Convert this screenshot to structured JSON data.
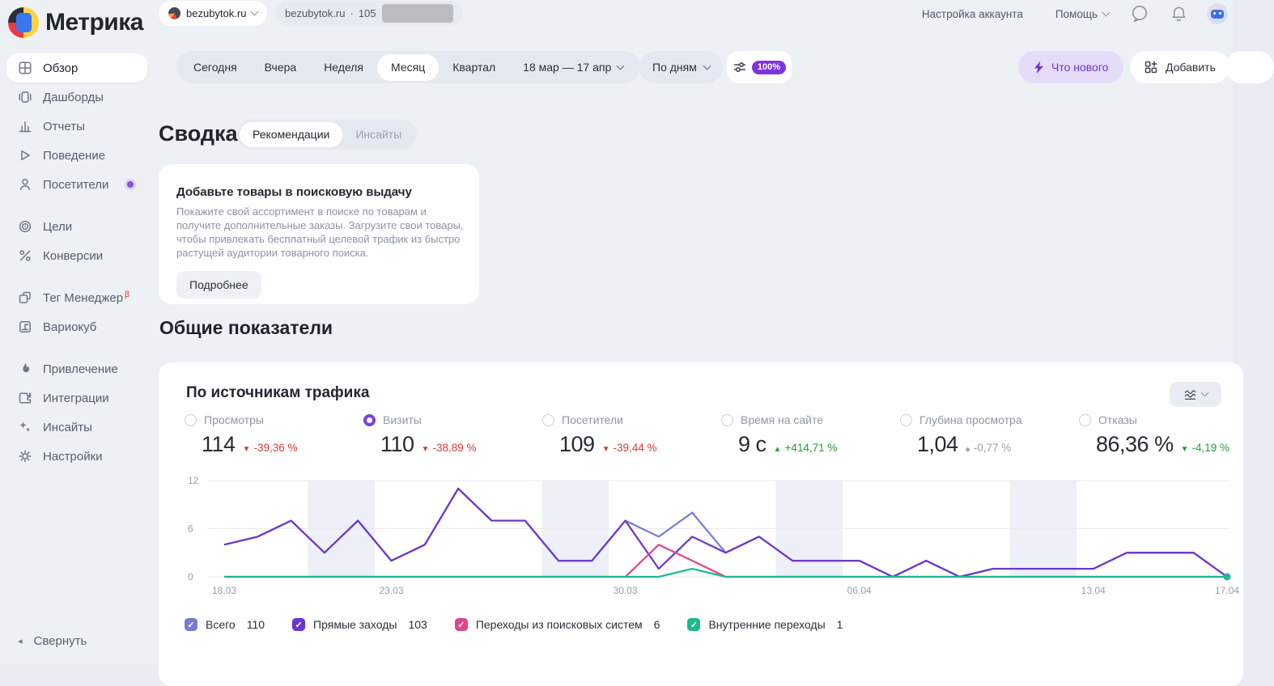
{
  "colors": {
    "accent": "#7a3fd6",
    "bad": "#d6403c",
    "good": "#27a03c",
    "neutral": "#9aa3b0",
    "badge": "#7d35d9"
  },
  "header": {
    "logo": "Метрика",
    "site_selector": "bezubytok.ru",
    "counter_site": "bezubytok.ru",
    "counter_bullet": "·",
    "counter_id_visible": "105",
    "account_settings": "Настройка аккаунта",
    "help": "Помощь"
  },
  "toolbar": {
    "periods": [
      "Сегодня",
      "Вчера",
      "Неделя",
      "Месяц",
      "Квартал"
    ],
    "selected_period": "Месяц",
    "date_range": "18 мар — 17 апр",
    "granularity": "По дням",
    "sampling": "100%",
    "whats_new": "Что нового",
    "add": "Добавить"
  },
  "sidebar": {
    "items": [
      "Обзор",
      "Дашборды",
      "Отчеты",
      "Поведение",
      "Посетители",
      "Цели",
      "Конверсии",
      "Тег Менеджер",
      "Вариокуб",
      "Привлечение",
      "Интеграции",
      "Инсайты",
      "Настройки"
    ],
    "active_item": "Обзор",
    "beta": "β",
    "collapse": "Свернуть"
  },
  "summary": {
    "title": "Сводка",
    "tab_recommendations": "Рекомендации",
    "tab_insights": "Инсайты",
    "card": {
      "title": "Добавьте товары в поисковую выдачу",
      "body": "Покажите свой ассортимент в поиске по товарам и получите дополнительные заказы. Загрузите свои товары, чтобы привлекать бесплатный целевой трафик из быстро растущей аудитории товарного поиска.",
      "button": "Подробнее"
    }
  },
  "overview": {
    "section_title": "Общие показатели",
    "widget_title": "По источникам трафика",
    "metrics": [
      {
        "label": "Просмотры",
        "value": "114",
        "arrow": "▼",
        "delta": "-39,36 %",
        "tone": "bad",
        "selected": false
      },
      {
        "label": "Визиты",
        "value": "110",
        "arrow": "▼",
        "delta": "-38,89 %",
        "tone": "bad",
        "selected": true
      },
      {
        "label": "Посетители",
        "value": "109",
        "arrow": "▼",
        "delta": "-39,44 %",
        "tone": "bad",
        "selected": false
      },
      {
        "label": "Время на сайте",
        "value": "9 с",
        "arrow": "▲",
        "delta": "+414,71 %",
        "tone": "good",
        "selected": false
      },
      {
        "label": "Глубина просмотра",
        "value": "1,04",
        "arrow": "◆",
        "delta": "-0,77 %",
        "tone": "neutral",
        "selected": false
      },
      {
        "label": "Отказы",
        "value": "86,36 %",
        "arrow": "▼",
        "delta": "-4,19 %",
        "tone": "good",
        "selected": false
      }
    ]
  },
  "chart_data": {
    "type": "line",
    "title": "По источникам трафика",
    "x": [
      "18.03",
      "19.03",
      "20.03",
      "21.03",
      "22.03",
      "23.03",
      "24.03",
      "25.03",
      "26.03",
      "27.03",
      "28.03",
      "29.03",
      "30.03",
      "31.03",
      "01.04",
      "02.04",
      "03.04",
      "04.04",
      "05.04",
      "06.04",
      "07.04",
      "08.04",
      "09.04",
      "10.04",
      "11.04",
      "12.04",
      "13.04",
      "14.04",
      "15.04",
      "16.04",
      "17.04"
    ],
    "x_ticks": [
      {
        "label": "18.03",
        "day": 0
      },
      {
        "label": "23.03",
        "day": 5
      },
      {
        "label": "30.03",
        "day": 12
      },
      {
        "label": "06.04",
        "day": 19
      },
      {
        "label": "13.04",
        "day": 26
      },
      {
        "label": "17.04",
        "day": 30
      }
    ],
    "ylim": [
      0,
      12
    ],
    "y_ticks": [
      0,
      6,
      12
    ],
    "grid": true,
    "weekend_band_start_days": [
      3,
      10,
      17,
      24
    ],
    "legend_position": "bottom",
    "series": [
      {
        "name": "Всего",
        "legend_value": "110",
        "color": "#767bd9",
        "values": [
          4,
          5,
          7,
          3,
          7,
          2,
          4,
          11,
          7,
          7,
          2,
          2,
          7,
          5,
          8,
          3,
          5,
          2,
          2,
          2,
          0,
          2,
          0,
          1,
          1,
          1,
          1,
          3,
          3,
          3,
          0
        ]
      },
      {
        "name": "Прямые заходы",
        "legend_value": "103",
        "color": "#6d35cc",
        "values": [
          4,
          5,
          7,
          3,
          7,
          2,
          4,
          11,
          7,
          7,
          2,
          2,
          7,
          1,
          5,
          3,
          5,
          2,
          2,
          2,
          0,
          2,
          0,
          1,
          1,
          1,
          1,
          3,
          3,
          3,
          0
        ]
      },
      {
        "name": "Переходы из поисковых систем",
        "legend_value": "6",
        "color": "#e0468c",
        "values": [
          0,
          0,
          0,
          0,
          0,
          0,
          0,
          0,
          0,
          0,
          0,
          0,
          0,
          4,
          2,
          0,
          0,
          0,
          0,
          0,
          0,
          0,
          0,
          0,
          0,
          0,
          0,
          0,
          0,
          0,
          0
        ]
      },
      {
        "name": "Внутренние переходы",
        "legend_value": "1",
        "color": "#1cb992",
        "values": [
          0,
          0,
          0,
          0,
          0,
          0,
          0,
          0,
          0,
          0,
          0,
          0,
          0,
          0,
          1,
          0,
          0,
          0,
          0,
          0,
          0,
          0,
          0,
          0,
          0,
          0,
          0,
          0,
          0,
          0,
          0
        ]
      }
    ]
  }
}
